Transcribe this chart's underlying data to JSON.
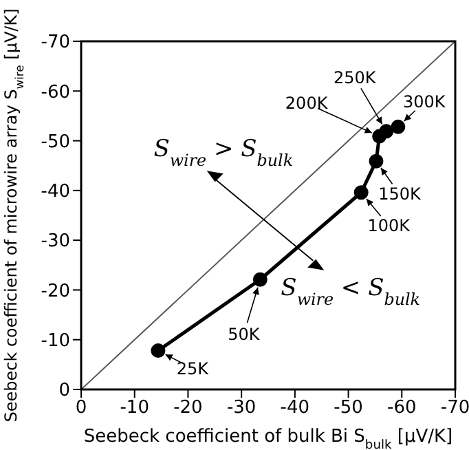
{
  "chart_data": {
    "type": "line",
    "xlabel": "Seebeck coefficient of bulk Bi S$_{bulk}$ [μV/K]",
    "ylabel": "Seebeck coefficient of microwire array S$_{wire}$ [μV/K]",
    "xlim": [
      0,
      -70
    ],
    "ylim": [
      0,
      -70
    ],
    "xticks": [
      0,
      -10,
      -20,
      -30,
      -40,
      -50,
      -60,
      -70
    ],
    "yticks": [
      0,
      -10,
      -20,
      -30,
      -40,
      -50,
      -60,
      -70
    ],
    "grid": false,
    "legend": false,
    "series": [
      {
        "color": "#000000",
        "x": [
          -14.4,
          -33.5,
          -52.4,
          -55.2,
          -55.8,
          -57.1,
          -59.3
        ],
        "values": [
          -7.8,
          -22.1,
          -39.6,
          -45.9,
          -50.9,
          -51.9,
          -52.8
        ],
        "marker": "circle",
        "line_style": "solid"
      },
      {
        "color": "#555555",
        "x": [
          0,
          -70
        ],
        "values": [
          0,
          -70
        ],
        "marker": "none",
        "line_style": "solid"
      }
    ],
    "annotations": [
      {
        "text": "25K",
        "x": -14.4,
        "y": -7.8
      },
      {
        "text": "50K",
        "x": -33.5,
        "y": -22.1
      },
      {
        "text": "100K",
        "x": -52.4,
        "y": -39.6
      },
      {
        "text": "150K",
        "x": -55.2,
        "y": -45.9
      },
      {
        "text": "200K",
        "x": -55.8,
        "y": -50.9
      },
      {
        "text": "250K",
        "x": -57.1,
        "y": -51.9
      },
      {
        "text": "300K",
        "x": -59.3,
        "y": -52.8
      },
      "S$_{wire}$ > S$_{bulk}$",
      "S$_{wire}$ < S$_{bulk}$"
    ]
  }
}
